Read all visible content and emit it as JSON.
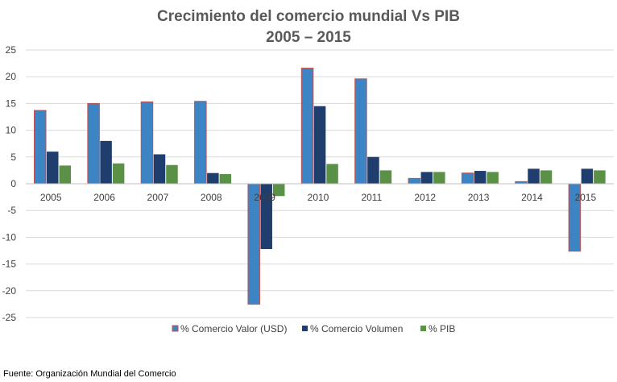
{
  "chart_data": {
    "type": "bar",
    "title": "Crecimiento del comercio mundial  Vs  PIB",
    "subtitle": "2005 – 2015",
    "categories": [
      "2005",
      "2006",
      "2007",
      "2008",
      "2009",
      "2010",
      "2011",
      "2012",
      "2013",
      "2014",
      "2015"
    ],
    "series": [
      {
        "name": "% Comercio Valor (USD)",
        "color": "#3c84c4",
        "border": "#c0504d",
        "values": [
          13.7,
          15.0,
          15.3,
          15.4,
          -22.5,
          21.6,
          19.6,
          1.0,
          2.0,
          0.4,
          -12.6
        ]
      },
      {
        "name": "% Comercio Volumen",
        "color": "#1f3e6e",
        "values": [
          6.0,
          8.0,
          5.5,
          2.0,
          -12.2,
          14.5,
          5.0,
          2.2,
          2.4,
          2.8,
          2.8
        ]
      },
      {
        "name": "% PIB",
        "color": "#5a9147",
        "values": [
          3.4,
          3.8,
          3.5,
          1.8,
          -2.3,
          3.7,
          2.5,
          2.2,
          2.2,
          2.5,
          2.5
        ]
      }
    ],
    "yticks": [
      25,
      20,
      15,
      10,
      5,
      0,
      -5,
      -10,
      -15,
      -20,
      -25
    ],
    "ylim": [
      -25,
      25
    ],
    "grid": true,
    "legend_position": "bottom"
  },
  "footer": {
    "source": "Fuente: Organización Mundial del Comercio"
  }
}
